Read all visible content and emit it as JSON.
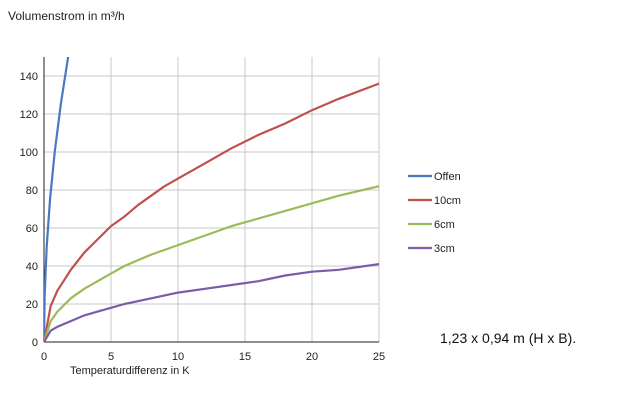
{
  "chart_data": {
    "type": "line",
    "title": "Volumenstrom in m³/h",
    "xlabel": "Temperaturdifferenz in K",
    "ylabel": "Volumenstrom in m³/h",
    "xlim": [
      0,
      25
    ],
    "ylim": [
      0,
      150
    ],
    "x_ticks": [
      0,
      5,
      10,
      15,
      20,
      25
    ],
    "y_ticks": [
      0,
      20,
      40,
      60,
      80,
      100,
      120,
      140
    ],
    "grid": true,
    "legend_position": "right",
    "series": [
      {
        "name": "Offen",
        "color": "#4a79c4",
        "points": [
          [
            0,
            0
          ],
          [
            0.05,
            25
          ],
          [
            0.2,
            50
          ],
          [
            0.45,
            75
          ],
          [
            0.8,
            100
          ],
          [
            1.25,
            125
          ],
          [
            1.8,
            150
          ]
        ]
      },
      {
        "name": "10cm",
        "color": "#c0504d",
        "points": [
          [
            0,
            0
          ],
          [
            0.5,
            19
          ],
          [
            1,
            27
          ],
          [
            2,
            38
          ],
          [
            3,
            47
          ],
          [
            4,
            54
          ],
          [
            5,
            61
          ],
          [
            6,
            66
          ],
          [
            7,
            72
          ],
          [
            8,
            77
          ],
          [
            9,
            82
          ],
          [
            10,
            86
          ],
          [
            12,
            94
          ],
          [
            14,
            102
          ],
          [
            16,
            109
          ],
          [
            18,
            115
          ],
          [
            20,
            122
          ],
          [
            22,
            128
          ],
          [
            25,
            136
          ]
        ]
      },
      {
        "name": "6cm",
        "color": "#9bbb59",
        "points": [
          [
            0,
            0
          ],
          [
            0.5,
            11
          ],
          [
            1,
            16
          ],
          [
            2,
            23
          ],
          [
            3,
            28
          ],
          [
            4,
            32
          ],
          [
            5,
            36
          ],
          [
            6,
            40
          ],
          [
            7,
            43
          ],
          [
            8,
            46
          ],
          [
            10,
            51
          ],
          [
            12,
            56
          ],
          [
            14,
            61
          ],
          [
            16,
            65
          ],
          [
            18,
            69
          ],
          [
            20,
            73
          ],
          [
            22,
            77
          ],
          [
            25,
            82
          ]
        ]
      },
      {
        "name": "3cm",
        "color": "#7a5ca8",
        "points": [
          [
            0,
            0
          ],
          [
            0.5,
            6
          ],
          [
            1,
            8
          ],
          [
            2,
            11
          ],
          [
            3,
            14
          ],
          [
            4,
            16
          ],
          [
            5,
            18
          ],
          [
            6,
            20
          ],
          [
            8,
            23
          ],
          [
            10,
            26
          ],
          [
            12,
            28
          ],
          [
            14,
            30
          ],
          [
            16,
            32
          ],
          [
            18,
            35
          ],
          [
            20,
            37
          ],
          [
            22,
            38
          ],
          [
            25,
            41
          ]
        ]
      }
    ]
  },
  "caption": "1,23 x 0,94 m (H x B).",
  "colors": {
    "grid": "#c8c8c8",
    "axis": "#222222",
    "text": "#222222"
  }
}
